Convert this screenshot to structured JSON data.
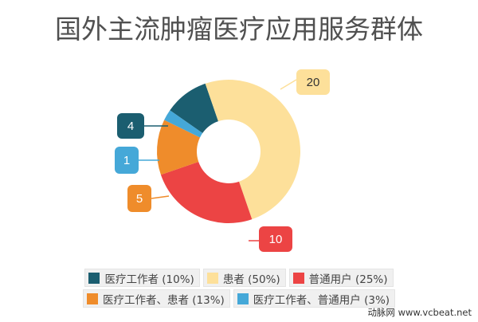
{
  "title": "国外主流肿瘤医疗应用服务群体",
  "footer": "动脉网 www.vcbeat.net",
  "chart_data": {
    "type": "pie",
    "variant": "donut",
    "title": "国外主流肿瘤医疗应用服务群体",
    "categories": [
      "医疗工作者",
      "患者",
      "普通用户",
      "医疗工作者、患者",
      "医疗工作者、普通用户"
    ],
    "values": [
      4,
      20,
      10,
      5,
      1
    ],
    "percentages": [
      "10%",
      "50%",
      "25%",
      "13%",
      "3%"
    ],
    "colors": [
      "#1b5e70",
      "#fde09a",
      "#ec4444",
      "#ef8c2b",
      "#45a8d8"
    ],
    "legend_position": "bottom"
  },
  "legend": [
    {
      "label": "医疗工作者 (10%)",
      "color": "#1b5e70"
    },
    {
      "label": "患者 (50%)",
      "color": "#fde09a"
    },
    {
      "label": "普通用户 (25%)",
      "color": "#ec4444"
    },
    {
      "label": "医疗工作者、患者 (13%)",
      "color": "#ef8c2b"
    },
    {
      "label": "医疗工作者、普通用户 (3%)",
      "color": "#45a8d8"
    }
  ],
  "data_labels": [
    "4",
    "20",
    "10",
    "5",
    "1"
  ]
}
